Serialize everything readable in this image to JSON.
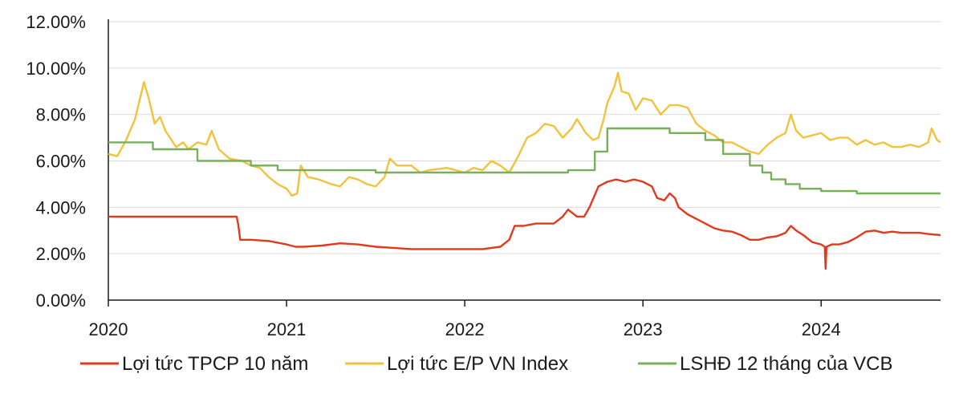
{
  "chart_data": {
    "type": "line",
    "title": "",
    "xlabel": "",
    "ylabel": "",
    "xlim": [
      2020.0,
      2024.67
    ],
    "ylim": [
      0,
      12
    ],
    "y_ticks": [
      "0.00%",
      "2.00%",
      "4.00%",
      "6.00%",
      "8.00%",
      "10.00%",
      "12.00%"
    ],
    "x_ticks": [
      "2020",
      "2021",
      "2022",
      "2023",
      "2024"
    ],
    "grid": "horizontal",
    "legend_position": "bottom",
    "series": [
      {
        "name": "Lợi tức TPCP 10 năm",
        "color": "#e03a1e",
        "points": [
          [
            2020.0,
            3.6
          ],
          [
            2020.72,
            3.6
          ],
          [
            2020.73,
            3.2
          ],
          [
            2020.74,
            2.6
          ],
          [
            2020.8,
            2.6
          ],
          [
            2020.9,
            2.55
          ],
          [
            2021.0,
            2.4
          ],
          [
            2021.05,
            2.3
          ],
          [
            2021.1,
            2.3
          ],
          [
            2021.2,
            2.35
          ],
          [
            2021.3,
            2.45
          ],
          [
            2021.4,
            2.4
          ],
          [
            2021.5,
            2.3
          ],
          [
            2021.6,
            2.25
          ],
          [
            2021.7,
            2.2
          ],
          [
            2021.8,
            2.2
          ],
          [
            2021.9,
            2.2
          ],
          [
            2022.0,
            2.2
          ],
          [
            2022.1,
            2.2
          ],
          [
            2022.2,
            2.3
          ],
          [
            2022.25,
            2.6
          ],
          [
            2022.28,
            3.2
          ],
          [
            2022.33,
            3.2
          ],
          [
            2022.4,
            3.3
          ],
          [
            2022.5,
            3.3
          ],
          [
            2022.55,
            3.6
          ],
          [
            2022.58,
            3.9
          ],
          [
            2022.63,
            3.6
          ],
          [
            2022.67,
            3.6
          ],
          [
            2022.7,
            4.0
          ],
          [
            2022.75,
            4.9
          ],
          [
            2022.8,
            5.1
          ],
          [
            2022.85,
            5.2
          ],
          [
            2022.9,
            5.1
          ],
          [
            2022.95,
            5.2
          ],
          [
            2023.0,
            5.1
          ],
          [
            2023.05,
            4.9
          ],
          [
            2023.08,
            4.4
          ],
          [
            2023.12,
            4.3
          ],
          [
            2023.15,
            4.6
          ],
          [
            2023.18,
            4.4
          ],
          [
            2023.2,
            4.0
          ],
          [
            2023.25,
            3.7
          ],
          [
            2023.3,
            3.5
          ],
          [
            2023.35,
            3.3
          ],
          [
            2023.4,
            3.1
          ],
          [
            2023.45,
            3.0
          ],
          [
            2023.5,
            2.95
          ],
          [
            2023.55,
            2.8
          ],
          [
            2023.6,
            2.6
          ],
          [
            2023.65,
            2.6
          ],
          [
            2023.7,
            2.7
          ],
          [
            2023.75,
            2.75
          ],
          [
            2023.8,
            2.9
          ],
          [
            2023.83,
            3.2
          ],
          [
            2023.86,
            3.0
          ],
          [
            2023.9,
            2.8
          ],
          [
            2023.95,
            2.5
          ],
          [
            2024.0,
            2.4
          ],
          [
            2024.02,
            2.3
          ],
          [
            2024.025,
            1.35
          ],
          [
            2024.03,
            2.3
          ],
          [
            2024.06,
            2.4
          ],
          [
            2024.1,
            2.4
          ],
          [
            2024.15,
            2.5
          ],
          [
            2024.2,
            2.7
          ],
          [
            2024.25,
            2.95
          ],
          [
            2024.3,
            3.0
          ],
          [
            2024.35,
            2.9
          ],
          [
            2024.4,
            2.95
          ],
          [
            2024.45,
            2.9
          ],
          [
            2024.5,
            2.9
          ],
          [
            2024.55,
            2.9
          ],
          [
            2024.6,
            2.85
          ],
          [
            2024.67,
            2.8
          ]
        ]
      },
      {
        "name": "Lợi tức E/P VN Index",
        "color": "#f2c23c",
        "points": [
          [
            2020.0,
            6.3
          ],
          [
            2020.05,
            6.2
          ],
          [
            2020.1,
            6.9
          ],
          [
            2020.15,
            7.8
          ],
          [
            2020.2,
            9.4
          ],
          [
            2020.23,
            8.6
          ],
          [
            2020.26,
            7.6
          ],
          [
            2020.29,
            7.9
          ],
          [
            2020.32,
            7.3
          ],
          [
            2020.38,
            6.6
          ],
          [
            2020.42,
            6.8
          ],
          [
            2020.45,
            6.5
          ],
          [
            2020.5,
            6.8
          ],
          [
            2020.55,
            6.7
          ],
          [
            2020.58,
            7.3
          ],
          [
            2020.62,
            6.5
          ],
          [
            2020.68,
            6.1
          ],
          [
            2020.75,
            6.0
          ],
          [
            2020.8,
            5.8
          ],
          [
            2020.85,
            5.7
          ],
          [
            2020.9,
            5.3
          ],
          [
            2020.95,
            5.0
          ],
          [
            2021.0,
            4.8
          ],
          [
            2021.03,
            4.5
          ],
          [
            2021.06,
            4.6
          ],
          [
            2021.08,
            5.8
          ],
          [
            2021.12,
            5.3
          ],
          [
            2021.18,
            5.2
          ],
          [
            2021.25,
            5.0
          ],
          [
            2021.3,
            4.9
          ],
          [
            2021.35,
            5.3
          ],
          [
            2021.4,
            5.2
          ],
          [
            2021.45,
            5.0
          ],
          [
            2021.5,
            4.9
          ],
          [
            2021.55,
            5.3
          ],
          [
            2021.58,
            6.1
          ],
          [
            2021.62,
            5.8
          ],
          [
            2021.7,
            5.8
          ],
          [
            2021.75,
            5.5
          ],
          [
            2021.8,
            5.6
          ],
          [
            2021.9,
            5.7
          ],
          [
            2021.95,
            5.6
          ],
          [
            2022.0,
            5.5
          ],
          [
            2022.05,
            5.7
          ],
          [
            2022.1,
            5.6
          ],
          [
            2022.15,
            6.0
          ],
          [
            2022.2,
            5.8
          ],
          [
            2022.25,
            5.5
          ],
          [
            2022.3,
            6.2
          ],
          [
            2022.35,
            7.0
          ],
          [
            2022.4,
            7.2
          ],
          [
            2022.45,
            7.6
          ],
          [
            2022.5,
            7.5
          ],
          [
            2022.55,
            7.0
          ],
          [
            2022.6,
            7.4
          ],
          [
            2022.63,
            7.8
          ],
          [
            2022.68,
            7.2
          ],
          [
            2022.72,
            6.9
          ],
          [
            2022.75,
            7.0
          ],
          [
            2022.78,
            7.8
          ],
          [
            2022.8,
            8.5
          ],
          [
            2022.84,
            9.2
          ],
          [
            2022.86,
            9.8
          ],
          [
            2022.88,
            9.0
          ],
          [
            2022.92,
            8.9
          ],
          [
            2022.96,
            8.2
          ],
          [
            2023.0,
            8.7
          ],
          [
            2023.05,
            8.6
          ],
          [
            2023.1,
            8.0
          ],
          [
            2023.15,
            8.4
          ],
          [
            2023.2,
            8.4
          ],
          [
            2023.25,
            8.3
          ],
          [
            2023.3,
            7.6
          ],
          [
            2023.35,
            7.3
          ],
          [
            2023.4,
            7.1
          ],
          [
            2023.45,
            6.8
          ],
          [
            2023.5,
            6.8
          ],
          [
            2023.55,
            6.6
          ],
          [
            2023.6,
            6.4
          ],
          [
            2023.65,
            6.3
          ],
          [
            2023.7,
            6.7
          ],
          [
            2023.75,
            7.0
          ],
          [
            2023.8,
            7.2
          ],
          [
            2023.83,
            8.0
          ],
          [
            2023.86,
            7.3
          ],
          [
            2023.9,
            7.0
          ],
          [
            2023.95,
            7.1
          ],
          [
            2024.0,
            7.2
          ],
          [
            2024.05,
            6.9
          ],
          [
            2024.1,
            7.0
          ],
          [
            2024.15,
            7.0
          ],
          [
            2024.2,
            6.7
          ],
          [
            2024.25,
            6.9
          ],
          [
            2024.3,
            6.7
          ],
          [
            2024.35,
            6.8
          ],
          [
            2024.4,
            6.6
          ],
          [
            2024.45,
            6.6
          ],
          [
            2024.5,
            6.7
          ],
          [
            2024.55,
            6.6
          ],
          [
            2024.6,
            6.8
          ],
          [
            2024.62,
            7.4
          ],
          [
            2024.65,
            6.9
          ],
          [
            2024.67,
            6.8
          ]
        ]
      },
      {
        "name": "LSHĐ 12  tháng của VCB",
        "color": "#78b05a",
        "points": [
          [
            2020.0,
            6.8
          ],
          [
            2020.25,
            6.8
          ],
          [
            2020.25,
            6.5
          ],
          [
            2020.5,
            6.5
          ],
          [
            2020.5,
            6.0
          ],
          [
            2020.8,
            6.0
          ],
          [
            2020.8,
            5.8
          ],
          [
            2020.95,
            5.8
          ],
          [
            2020.95,
            5.6
          ],
          [
            2021.5,
            5.6
          ],
          [
            2021.5,
            5.5
          ],
          [
            2022.58,
            5.5
          ],
          [
            2022.58,
            5.6
          ],
          [
            2022.73,
            5.6
          ],
          [
            2022.73,
            6.4
          ],
          [
            2022.8,
            6.4
          ],
          [
            2022.8,
            7.4
          ],
          [
            2023.15,
            7.4
          ],
          [
            2023.15,
            7.2
          ],
          [
            2023.35,
            7.2
          ],
          [
            2023.35,
            6.9
          ],
          [
            2023.45,
            6.9
          ],
          [
            2023.45,
            6.3
          ],
          [
            2023.6,
            6.3
          ],
          [
            2023.6,
            5.8
          ],
          [
            2023.67,
            5.8
          ],
          [
            2023.67,
            5.5
          ],
          [
            2023.72,
            5.5
          ],
          [
            2023.72,
            5.2
          ],
          [
            2023.8,
            5.2
          ],
          [
            2023.8,
            5.0
          ],
          [
            2023.88,
            5.0
          ],
          [
            2023.88,
            4.8
          ],
          [
            2024.0,
            4.8
          ],
          [
            2024.0,
            4.7
          ],
          [
            2024.2,
            4.7
          ],
          [
            2024.2,
            4.6
          ],
          [
            2024.67,
            4.6
          ]
        ]
      }
    ]
  }
}
